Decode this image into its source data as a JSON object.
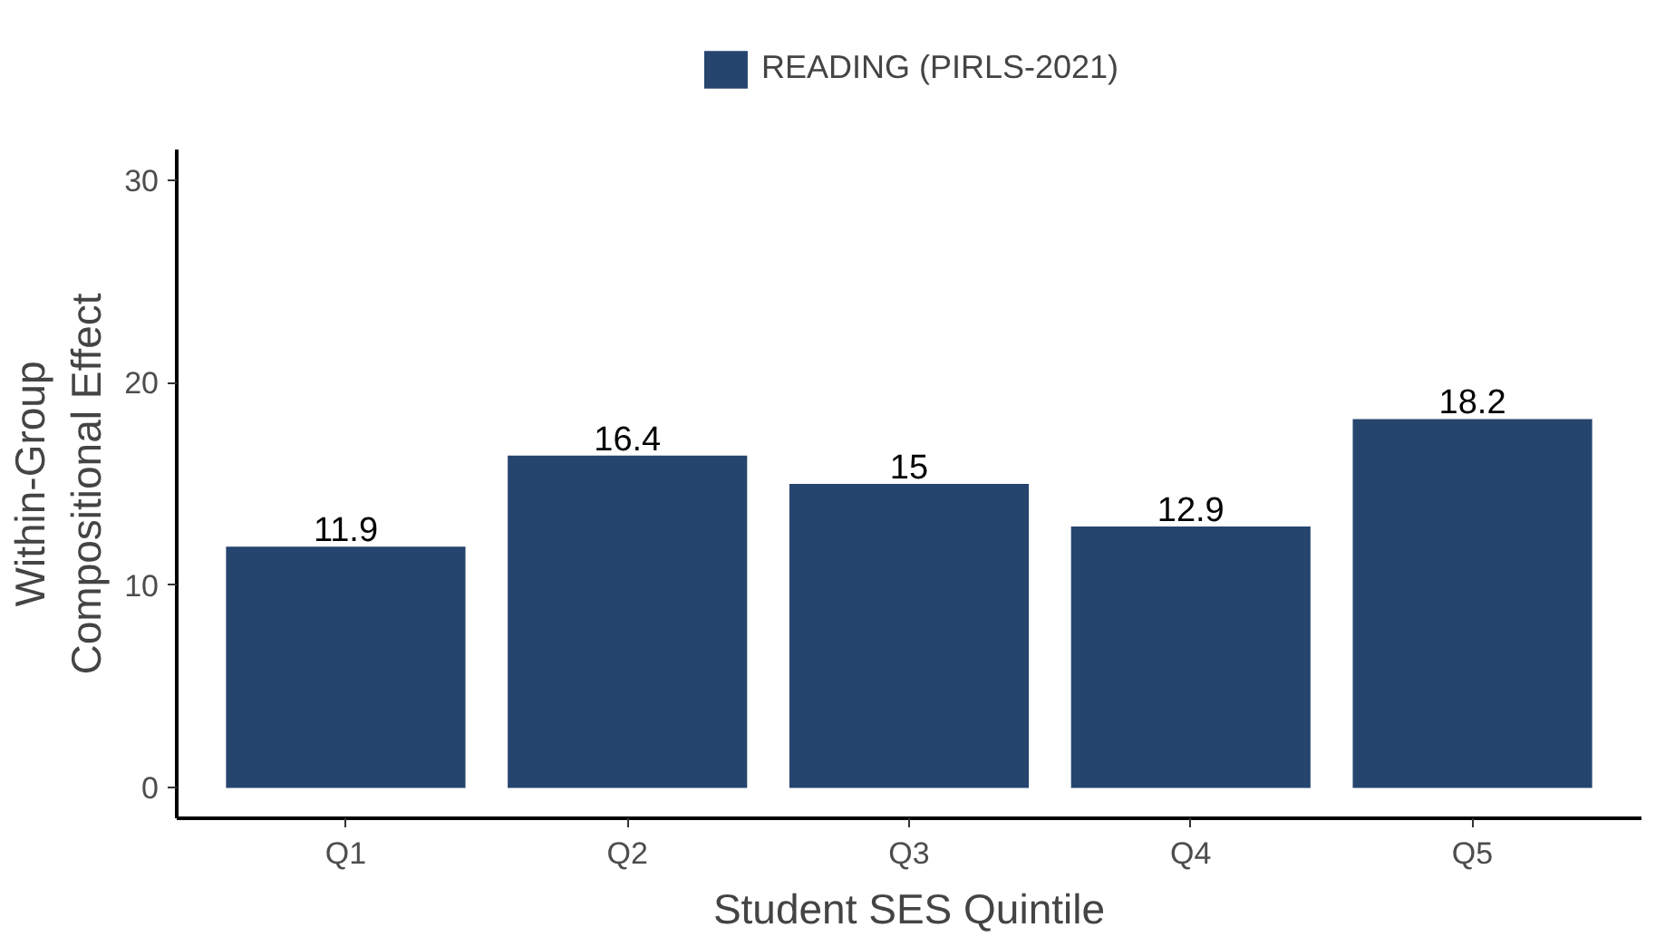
{
  "chart_data": {
    "type": "bar",
    "xlabel": "Student SES Quintile",
    "ylabel": "Within-Group\nCompositional Effect",
    "categories": [
      "Q1",
      "Q2",
      "Q3",
      "Q4",
      "Q5"
    ],
    "series": [
      {
        "name": "READING (PIRLS-2021)",
        "color": "#26456e",
        "values": [
          11.9,
          16.4,
          15,
          12.9,
          18.2
        ]
      }
    ],
    "ylim": [
      -1.5,
      31.5
    ],
    "yticks": [
      0,
      10,
      20,
      30
    ],
    "grid": false,
    "legend": "top",
    "data_labels": true
  }
}
